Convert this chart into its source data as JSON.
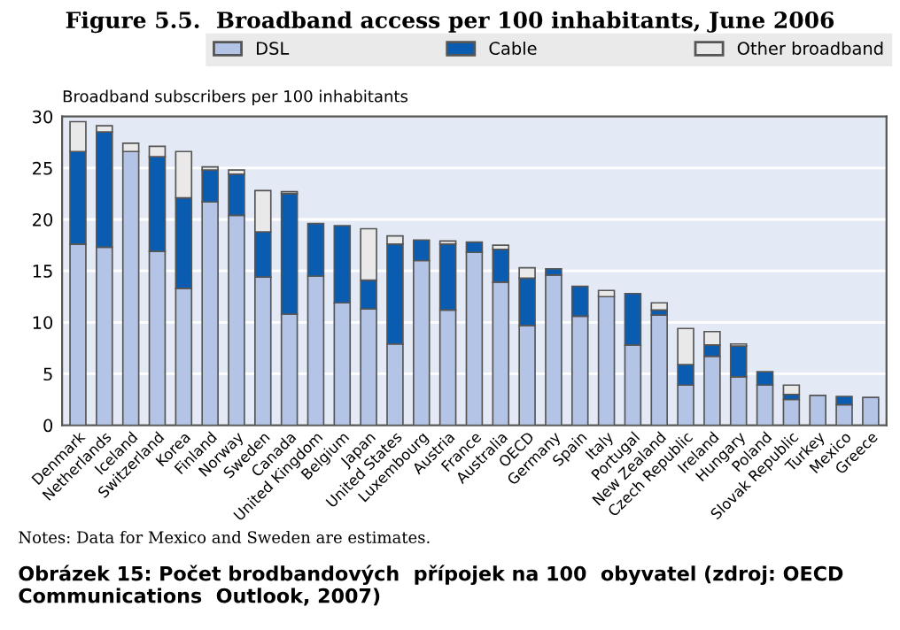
{
  "chart_data": {
    "type": "bar",
    "stacked": true,
    "title": "Figure 5.5.  Broadband access per 100 inhabitants, June 2006",
    "ylabel": "Broadband subscribers per 100 inhabitants",
    "categories": [
      "Denmark",
      "Netherlands",
      "Iceland",
      "Switzerland",
      "Korea",
      "Finland",
      "Norway",
      "Sweden",
      "Canada",
      "United Kingdom",
      "Belgium",
      "Japan",
      "United States",
      "Luxembourg",
      "Austria",
      "France",
      "Australia",
      "OECD",
      "Germany",
      "Spain",
      "Italy",
      "Portugal",
      "New Zealand",
      "Czech Republic",
      "Ireland",
      "Hungary",
      "Poland",
      "Slovak Republic",
      "Turkey",
      "Mexico",
      "Greece"
    ],
    "series": [
      {
        "name": "DSL",
        "color": "#b3c4e6",
        "values": [
          17.6,
          17.3,
          26.6,
          16.9,
          13.3,
          21.7,
          20.4,
          14.4,
          10.8,
          14.5,
          11.9,
          11.3,
          7.9,
          16.0,
          11.2,
          16.8,
          13.9,
          9.7,
          14.6,
          10.6,
          12.5,
          7.8,
          10.7,
          3.9,
          6.7,
          4.7,
          3.9,
          2.5,
          2.9,
          2.0,
          2.7
        ]
      },
      {
        "name": "Cable",
        "color": "#0a5cb0",
        "values": [
          9.0,
          11.2,
          0,
          9.2,
          8.8,
          3.1,
          4.0,
          4.4,
          11.7,
          5.1,
          7.5,
          2.8,
          9.7,
          2.0,
          6.4,
          1.0,
          3.2,
          4.6,
          0.6,
          2.9,
          0,
          5.0,
          0.5,
          2.0,
          1.1,
          3.0,
          1.3,
          0.5,
          0,
          0.8,
          0
        ]
      },
      {
        "name": "Other broadband",
        "color": "#e9e9e9",
        "values": [
          2.9,
          0.6,
          0.8,
          1.0,
          4.5,
          0.3,
          0.4,
          4.0,
          0.2,
          0,
          0,
          5.0,
          0.8,
          0,
          0.3,
          0,
          0.4,
          1.0,
          0,
          0,
          0.6,
          0,
          0.7,
          3.5,
          1.3,
          0.2,
          0,
          0.9,
          0,
          0,
          0
        ]
      }
    ],
    "ylim": [
      0,
      30
    ],
    "yticks": [
      0,
      5,
      10,
      15,
      20,
      25,
      30
    ],
    "grid": "y",
    "legend": "top",
    "annotations": [
      "Notes: Data for Mexico and Sweden are estimates.",
      "Obrázek 15: Počet brodbandových  přípojek na 100  obyvatel (zdroj: OECD Communications  Outlook, 2007)"
    ]
  }
}
